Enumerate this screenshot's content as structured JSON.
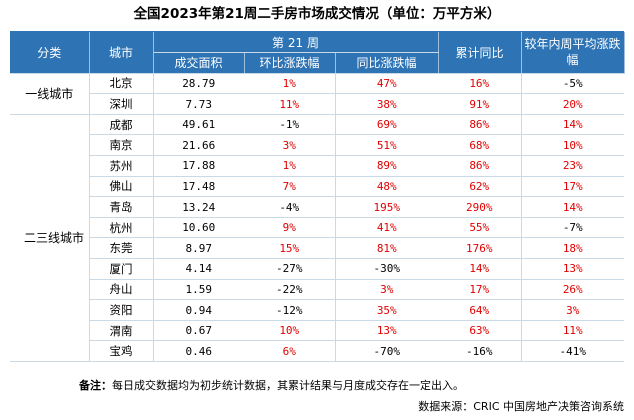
{
  "title": "全国2023年第21周二手房市场成交情况（单位：万平方米）",
  "headers": {
    "category": "分类",
    "city": "城市",
    "week": "第 21 周",
    "volume": "成交面积",
    "mom": "环比涨跌幅",
    "yoy": "同比涨跌幅",
    "cum_yoy": "累计同比",
    "recent_avg": "较年内周平均涨跌幅"
  },
  "groups": {
    "tier1": "一线城市",
    "tier23": "二三线城市"
  },
  "rows": [
    {
      "city": "北京",
      "volume": "28.79",
      "mom": "1%",
      "yoy": "47%",
      "cum": "16%",
      "avg": "-5%"
    },
    {
      "city": "深圳",
      "volume": "7.73",
      "mom": "11%",
      "yoy": "38%",
      "cum": "91%",
      "avg": "20%"
    },
    {
      "city": "成都",
      "volume": "49.61",
      "mom": "-1%",
      "yoy": "69%",
      "cum": "86%",
      "avg": "14%"
    },
    {
      "city": "南京",
      "volume": "21.66",
      "mom": "3%",
      "yoy": "51%",
      "cum": "68%",
      "avg": "10%"
    },
    {
      "city": "苏州",
      "volume": "17.88",
      "mom": "1%",
      "yoy": "89%",
      "cum": "86%",
      "avg": "23%"
    },
    {
      "city": "佛山",
      "volume": "17.48",
      "mom": "7%",
      "yoy": "48%",
      "cum": "62%",
      "avg": "17%"
    },
    {
      "city": "青岛",
      "volume": "13.24",
      "mom": "-4%",
      "yoy": "195%",
      "cum": "290%",
      "avg": "14%"
    },
    {
      "city": "杭州",
      "volume": "10.60",
      "mom": "9%",
      "yoy": "41%",
      "cum": "55%",
      "avg": "-7%"
    },
    {
      "city": "东莞",
      "volume": "8.97",
      "mom": "15%",
      "yoy": "81%",
      "cum": "176%",
      "avg": "18%"
    },
    {
      "city": "厦门",
      "volume": "4.14",
      "mom": "-27%",
      "yoy": "-30%",
      "cum": "14%",
      "avg": "13%"
    },
    {
      "city": "舟山",
      "volume": "1.59",
      "mom": "-22%",
      "yoy": "3%",
      "cum": "17%",
      "avg": "26%"
    },
    {
      "city": "资阳",
      "volume": "0.94",
      "mom": "-12%",
      "yoy": "35%",
      "cum": "64%",
      "avg": "3%"
    },
    {
      "city": "渭南",
      "volume": "0.67",
      "mom": "10%",
      "yoy": "13%",
      "cum": "63%",
      "avg": "11%"
    },
    {
      "city": "宝鸡",
      "volume": "0.46",
      "mom": "6%",
      "yoy": "-70%",
      "cum": "-16%",
      "avg": "-41%"
    }
  ],
  "note_label": "备注：",
  "note_text": "每日成交数据均为初步统计数据，其累计结果与月度成交存在一定出入。",
  "source": "数据来源：CRIC 中国房地产决策咨询系统",
  "colors": {
    "header_bg": "#2e74b5",
    "positive": "#e00000",
    "negative": "#000000"
  }
}
